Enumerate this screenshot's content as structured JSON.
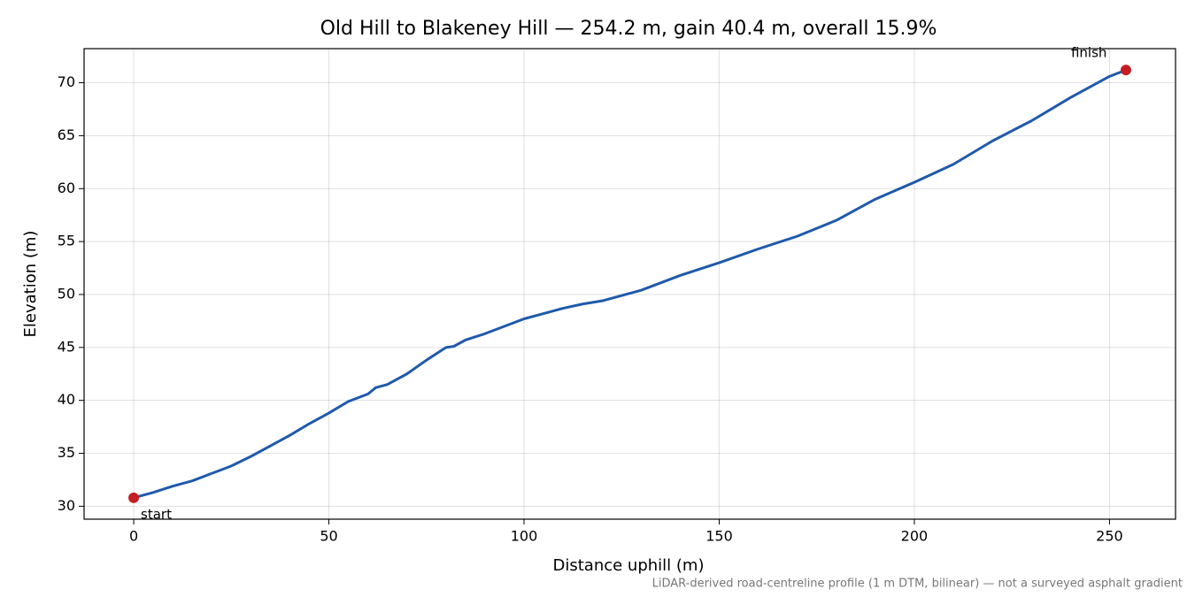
{
  "chart_data": {
    "type": "line",
    "title": "Old Hill to Blakeney Hill — 254.2 m, gain 40.4 m, overall 15.9%",
    "xlabel": "Distance uphill (m)",
    "ylabel": "Elevation (m)",
    "footnote": "LiDAR-derived road-centreline profile (1 m DTM, bilinear) — not a surveyed asphalt gradient",
    "x": [
      0,
      5,
      10,
      15,
      20,
      25,
      30,
      35,
      40,
      45,
      50,
      55,
      60,
      62,
      65,
      70,
      75,
      80,
      82,
      85,
      90,
      95,
      100,
      105,
      110,
      115,
      120,
      125,
      130,
      140,
      150,
      160,
      170,
      180,
      190,
      200,
      210,
      220,
      230,
      240,
      250,
      254.2
    ],
    "series": [
      {
        "name": "Elevation",
        "color": "#1f5aab",
        "values": [
          30.8,
          31.3,
          31.9,
          32.4,
          33.1,
          33.8,
          34.7,
          35.7,
          36.7,
          37.8,
          38.8,
          39.9,
          40.6,
          41.2,
          41.5,
          42.5,
          43.8,
          45.0,
          45.1,
          45.7,
          46.3,
          47.0,
          47.7,
          48.2,
          48.7,
          49.1,
          49.4,
          49.9,
          50.4,
          51.8,
          53.0,
          54.3,
          55.5,
          57.0,
          59.0,
          60.6,
          62.3,
          64.5,
          66.4,
          68.6,
          70.6,
          71.2
        ]
      }
    ],
    "annotations": [
      {
        "text": "start",
        "x": 0,
        "y": 30.8,
        "color": "#c41e24"
      },
      {
        "text": "finish",
        "x": 254.2,
        "y": 71.2,
        "color": "#c41e24"
      }
    ],
    "xlim": [
      -12.71,
      266.91
    ],
    "ylim": [
      28.78,
      73.22
    ],
    "xticks": [
      0,
      50,
      100,
      150,
      200,
      250
    ],
    "yticks": [
      30,
      35,
      40,
      45,
      50,
      55,
      60,
      65,
      70
    ],
    "grid": true
  }
}
